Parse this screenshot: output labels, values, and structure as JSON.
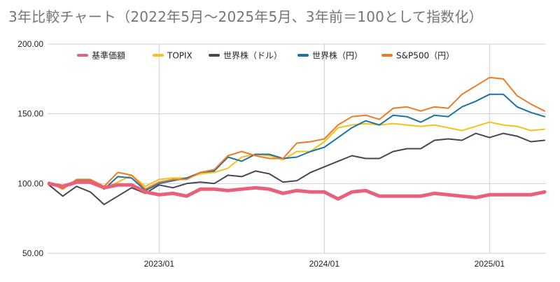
{
  "chart_data": {
    "type": "line",
    "title": "3年比較チャート（2022年5月～2025年5月、3年前＝100として指数化）",
    "xlabel": "",
    "ylabel": "",
    "ylim": [
      50,
      200
    ],
    "yticks": [
      50,
      100,
      150,
      200
    ],
    "ytick_labels": [
      "50.00",
      "100.00",
      "150.00",
      "200.00"
    ],
    "xticks": [
      {
        "label": "2023/01",
        "date": "2023-01"
      },
      {
        "label": "2024/01",
        "date": "2024-01"
      },
      {
        "label": "2025/01",
        "date": "2025-01"
      }
    ],
    "x": [
      "2022-05",
      "2022-06",
      "2022-07",
      "2022-08",
      "2022-09",
      "2022-10",
      "2022-11",
      "2022-12",
      "2023-01",
      "2023-02",
      "2023-03",
      "2023-04",
      "2023-05",
      "2023-06",
      "2023-07",
      "2023-08",
      "2023-09",
      "2023-10",
      "2023-11",
      "2023-12",
      "2024-01",
      "2024-02",
      "2024-03",
      "2024-04",
      "2024-05",
      "2024-06",
      "2024-07",
      "2024-08",
      "2024-09",
      "2024-10",
      "2024-11",
      "2024-12",
      "2025-01",
      "2025-02",
      "2025-03",
      "2025-04",
      "2025-05"
    ],
    "grid": {
      "horizontal": true,
      "vertical": true
    },
    "legend_position": "top",
    "series": [
      {
        "name": "基準価額",
        "color": "#e8607a",
        "values": [
          100,
          98,
          101,
          101,
          97,
          99,
          99,
          94,
          92,
          93,
          91,
          96,
          96,
          95,
          96,
          97,
          96,
          93,
          95,
          94,
          94,
          89,
          94,
          95,
          91,
          91,
          91,
          91,
          93,
          92,
          91,
          90,
          92,
          92,
          92,
          92,
          94
        ]
      },
      {
        "name": "TOPIX",
        "color": "#f5c11a",
        "values": [
          100,
          97,
          101,
          101,
          97,
          101,
          106,
          98,
          103,
          104,
          104,
          107,
          108,
          111,
          119,
          121,
          120,
          117,
          123,
          123,
          130,
          140,
          142,
          143,
          142,
          143,
          142,
          141,
          142,
          140,
          138,
          141,
          144,
          142,
          141,
          138,
          139
        ]
      },
      {
        "name": "世界株（ドル）",
        "color": "#4a4556",
        "values": [
          99,
          91,
          98,
          94,
          85,
          91,
          97,
          93,
          99,
          97,
          100,
          101,
          100,
          106,
          105,
          109,
          107,
          101,
          102,
          108,
          112,
          116,
          120,
          118,
          118,
          123,
          125,
          125,
          131,
          132,
          131,
          136,
          133,
          136,
          134,
          130,
          131
        ]
      },
      {
        "name": "世界株（円）",
        "color": "#1a73a8",
        "values": [
          100,
          97,
          102,
          102,
          96,
          105,
          104,
          95,
          100,
          102,
          104,
          108,
          109,
          119,
          116,
          121,
          121,
          118,
          119,
          123,
          126,
          133,
          140,
          145,
          142,
          149,
          148,
          144,
          149,
          148,
          155,
          159,
          164,
          164,
          155,
          151,
          148
        ]
      },
      {
        "name": "S&P500（円）",
        "color": "#f07a22",
        "values": [
          101,
          96,
          103,
          103,
          98,
          108,
          106,
          96,
          101,
          103,
          103,
          108,
          110,
          120,
          123,
          120,
          118,
          118,
          129,
          130,
          132,
          142,
          148,
          149,
          146,
          154,
          155,
          152,
          155,
          154,
          164,
          170,
          176,
          175,
          163,
          157,
          152
        ]
      }
    ]
  }
}
